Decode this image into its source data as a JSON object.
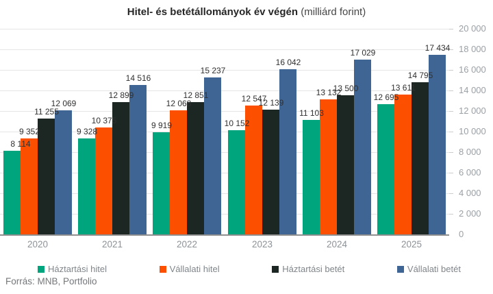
{
  "title": {
    "main": "Hitel- és betétállományok év végén",
    "suffix": " (milliárd forint)"
  },
  "footer": {
    "source": "Forrás: MNB, Portfolio"
  },
  "chart_data": {
    "type": "bar",
    "title": "Hitel- és betétállományok év végén (milliárd forint)",
    "categories": [
      "2020",
      "2021",
      "2022",
      "2023",
      "2024",
      "2025"
    ],
    "series": [
      {
        "name": "Háztartási hitel",
        "color": "#00A57E",
        "values": [
          8114,
          9328,
          9919,
          10152,
          11103,
          12695
        ]
      },
      {
        "name": "Vállalati hitel",
        "color": "#FC5000",
        "values": [
          9352,
          10375,
          12068,
          12547,
          13132,
          13611
        ]
      },
      {
        "name": "Háztartási betét",
        "color": "#1C2623",
        "values": [
          11255,
          12899,
          12851,
          12139,
          13500,
          14795
        ]
      },
      {
        "name": "Vállalati betét",
        "color": "#3E6594",
        "values": [
          12069,
          14516,
          15237,
          16042,
          17029,
          17434
        ]
      }
    ],
    "ylim": [
      0,
      20000
    ],
    "ytick_step": 2000,
    "ytick_labels": [
      "0",
      "2 000",
      "4 000",
      "6 000",
      "8 000",
      "10 000",
      "12 000",
      "14 000",
      "16 000",
      "18 000",
      "20 000"
    ],
    "grid": true,
    "value_labels": true,
    "legend_position": "bottom",
    "xlabel": "",
    "ylabel": ""
  }
}
